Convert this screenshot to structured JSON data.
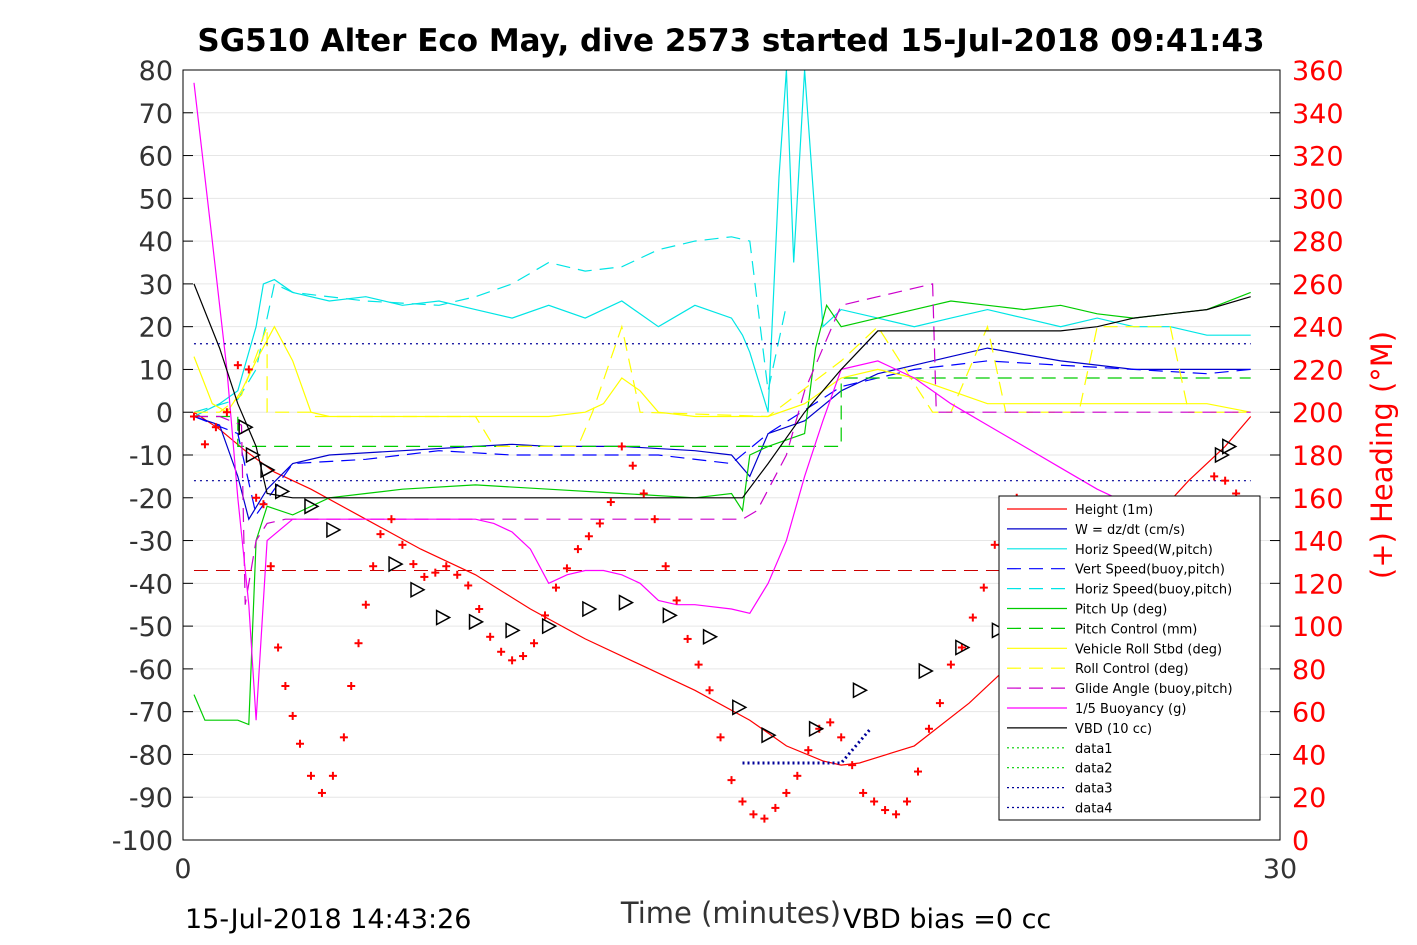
{
  "chart_data": {
    "type": "line",
    "title": "SG510 Alter Eco May, dive 2573 started 15-Jul-2018 09:41:43",
    "xlabel": "Time (minutes)",
    "ylabel_right": "(+) Heading (°M)",
    "xlim": [
      0,
      30
    ],
    "ylim": [
      -100,
      80
    ],
    "ylim_right": [
      0,
      360
    ],
    "x_ticks": [
      "0",
      "30"
    ],
    "y_ticks": [
      "80",
      "70",
      "60",
      "50",
      "40",
      "30",
      "20",
      "10",
      "0",
      "-10",
      "-20",
      "-30",
      "-40",
      "-50",
      "-60",
      "-70",
      "-80",
      "-90",
      "-100"
    ],
    "y_ticks_right": [
      "360",
      "340",
      "320",
      "300",
      "280",
      "260",
      "240",
      "220",
      "200",
      "180",
      "160",
      "140",
      "120",
      "100",
      "80",
      "60",
      "40",
      "20",
      "0"
    ],
    "grid": true,
    "legend_position": "lower-right",
    "footer_left": "15-Jul-2018 14:43:26",
    "footer_right": "VBD bias =0 cc",
    "colors": {
      "height": "#ff0000",
      "w": "#0000cc",
      "horiz_speed": "#00e5e5",
      "vert_speed": "#0000ff",
      "pitch": "#00cc00",
      "roll": "#ffff00",
      "glide": "#cc00cc",
      "buoyancy": "#ff00ff",
      "vbd": "#000000",
      "data4": "#000099",
      "dark_red": "#cc0000",
      "heading_axis": "#ff0000"
    },
    "legend": [
      {
        "label": "Height (1m)",
        "color": "#ff0000",
        "dash": ""
      },
      {
        "label": "W = dz/dt (cm/s)",
        "color": "#0000cc",
        "dash": ""
      },
      {
        "label": "Horiz Speed(W,pitch)",
        "color": "#00e5e5",
        "dash": ""
      },
      {
        "label": "Vert Speed(buoy,pitch)",
        "color": "#0000ff",
        "dash": "14 8"
      },
      {
        "label": "Horiz Speed(buoy,pitch)",
        "color": "#00e5e5",
        "dash": "14 8"
      },
      {
        "label": "Pitch Up (deg)",
        "color": "#00cc00",
        "dash": ""
      },
      {
        "label": "Pitch Control (mm)",
        "color": "#00cc00",
        "dash": "14 8"
      },
      {
        "label": "Vehicle Roll Stbd (deg)",
        "color": "#ffff00",
        "dash": ""
      },
      {
        "label": "Roll Control (deg)",
        "color": "#ffff00",
        "dash": "14 8"
      },
      {
        "label": "Glide Angle (buoy,pitch)",
        "color": "#cc00cc",
        "dash": "14 8"
      },
      {
        "label": "1/5 Buoyancy (g)",
        "color": "#ff00ff",
        "dash": ""
      },
      {
        "label": "VBD (10 cc)",
        "color": "#000000",
        "dash": ""
      },
      {
        "label": "data1",
        "color": "#00cc00",
        "dash": "2 3"
      },
      {
        "label": "data2",
        "color": "#00cc00",
        "dash": "2 3"
      },
      {
        "label": "data3",
        "color": "#000099",
        "dash": "2 3"
      },
      {
        "label": "data4",
        "color": "#000099",
        "dash": "2 3"
      }
    ],
    "series": [
      {
        "name": "Height (1m)",
        "x": [
          0.3,
          1.0,
          1.7,
          2.5,
          3.5,
          5,
          6.5,
          8,
          9.5,
          11,
          12.5,
          14,
          15.5,
          16.5,
          17.5,
          18,
          18.5,
          20,
          21.5,
          23,
          24.5,
          26,
          27.5,
          28.5,
          29.2
        ],
        "y": [
          0,
          -4,
          -9,
          -14,
          -18,
          -25,
          -32,
          -38,
          -46,
          -53,
          -59,
          -65,
          -72,
          -78,
          -81.5,
          -82.5,
          -82,
          -78,
          -68,
          -56,
          -44,
          -30,
          -16,
          -8,
          -1
        ]
      },
      {
        "name": "W = dz/dt (cm/s)",
        "x": [
          0.3,
          1.0,
          1.5,
          1.8,
          2.3,
          3,
          4,
          6,
          8,
          9,
          10,
          12,
          14,
          15,
          15.5,
          16,
          17,
          18,
          19,
          20,
          21,
          22,
          24,
          26,
          28,
          29.2
        ],
        "y": [
          -1,
          -3,
          -15,
          -25,
          -18,
          -12,
          -10,
          -9,
          -8,
          -7.5,
          -8,
          -8,
          -9,
          -10,
          -15,
          -5,
          -2,
          5,
          9,
          11,
          13,
          15,
          12,
          10,
          10,
          10
        ]
      },
      {
        "name": "Horiz Speed(W,pitch)",
        "x": [
          0.3,
          1.0,
          1.5,
          2.0,
          2.2,
          2.5,
          3,
          4,
          5,
          6,
          7,
          8,
          9,
          10,
          11,
          12,
          13,
          14,
          15,
          15.3,
          15.5,
          16,
          16.3,
          16.5,
          16.7,
          17,
          17.5,
          18,
          19,
          20,
          21,
          22,
          23,
          24,
          25,
          26,
          27,
          28,
          29.2
        ],
        "y": [
          -1,
          2,
          5,
          20,
          30,
          31,
          28,
          26,
          27,
          25,
          26,
          24,
          22,
          25,
          22,
          26,
          20,
          25,
          22,
          18,
          14,
          0,
          55,
          80,
          35,
          80,
          20,
          24,
          22,
          20,
          22,
          24,
          22,
          20,
          22,
          20,
          20,
          18,
          18
        ]
      },
      {
        "name": "Vert Speed(buoy,pitch)",
        "x": [
          0.3,
          1.5,
          2.0,
          3,
          5,
          7,
          9,
          11,
          13,
          15,
          16,
          18,
          20,
          22,
          24,
          26,
          28,
          29.2
        ],
        "y": [
          -1,
          -5,
          -24,
          -12,
          -11,
          -9,
          -10,
          -10,
          -10,
          -12,
          -5,
          6,
          10,
          12,
          11,
          10,
          9,
          10
        ]
      },
      {
        "name": "Horiz Speed(buoy,pitch)",
        "x": [
          0.3,
          1.5,
          2.0,
          2.5,
          3,
          5,
          7,
          8,
          9,
          10,
          11,
          12,
          13,
          14,
          15,
          15.5,
          16,
          16.5
        ],
        "y": [
          0,
          3,
          10,
          30,
          28,
          26,
          25,
          27,
          30,
          35,
          33,
          34,
          38,
          40,
          41,
          40,
          5,
          25
        ]
      },
      {
        "name": "Pitch Up (deg)",
        "x": [
          0.3,
          0.6,
          1.0,
          1.5,
          1.8,
          2.0,
          2.3,
          3,
          4,
          5,
          6,
          8,
          10,
          12,
          14,
          15,
          15.3,
          15.5,
          16,
          17,
          17.3,
          17.6,
          18,
          19,
          20,
          21,
          22,
          23,
          24,
          25,
          26,
          27,
          28,
          29.2
        ],
        "y": [
          -66,
          -72,
          -72,
          -72,
          -73,
          -30,
          -22,
          -24,
          -20,
          -19,
          -18,
          -17,
          -18,
          -19,
          -20,
          -19,
          -23,
          -10,
          -8,
          -5,
          15,
          25,
          20,
          22,
          24,
          26,
          25,
          24,
          25,
          23,
          22,
          23,
          24,
          28
        ]
      },
      {
        "name": "Pitch Control (mm)",
        "x": [
          0.3,
          1.5,
          1.5,
          15.3,
          15.3,
          18,
          18,
          29.2
        ],
        "y": [
          -1,
          -1,
          -8,
          -8,
          -8,
          -8,
          8,
          8
        ]
      },
      {
        "name": "Vehicle Roll Stbd (deg)",
        "x": [
          0.3,
          0.8,
          1.2,
          1.6,
          2.0,
          2.5,
          3,
          3.5,
          4,
          5,
          6,
          7,
          8,
          9,
          10,
          11,
          11.5,
          12,
          12.5,
          13,
          14,
          15,
          15.5,
          16,
          17,
          18,
          19,
          20,
          21,
          22,
          23,
          24,
          25,
          26,
          27,
          28,
          29.2
        ],
        "y": [
          13,
          2,
          0,
          5,
          12,
          20,
          12,
          0,
          -1,
          -1,
          -1,
          -1,
          -1,
          -1,
          -1,
          0,
          2,
          8,
          5,
          0,
          -1,
          -1,
          -1,
          -1,
          2,
          8,
          10,
          8,
          5,
          2,
          2,
          2,
          2,
          2,
          2,
          2,
          0
        ]
      },
      {
        "name": "Roll Control (deg)",
        "x": [
          0.3,
          1.0,
          1.6,
          2.3,
          2.3,
          3.5,
          3.5,
          8,
          8.5,
          10.8,
          11.2,
          12,
          12.5,
          16,
          18,
          19,
          20.5,
          21,
          22,
          22.5,
          24.5,
          25,
          27,
          27.5,
          29.2
        ],
        "y": [
          0,
          0,
          4,
          20,
          0,
          0,
          -1,
          -1,
          -8,
          -8,
          0,
          20,
          0,
          -1,
          12,
          20,
          0,
          0,
          20,
          0,
          0,
          20,
          20,
          0,
          0
        ]
      },
      {
        "name": "Glide Angle (buoy,pitch)",
        "x": [
          0.3,
          1.0,
          1.6,
          1.7,
          2.0,
          2.3,
          2.8,
          15.3,
          15.7,
          16.5,
          17,
          17.5,
          18,
          19,
          20,
          20.5,
          20.6,
          21,
          29.2
        ],
        "y": [
          -1,
          -1,
          -3,
          -45,
          -30,
          -26,
          -25,
          -25,
          -23,
          -10,
          5,
          15,
          25,
          27,
          29,
          30,
          0,
          0,
          0
        ]
      },
      {
        "name": "1/5 Buoyancy (g)",
        "x": [
          0.3,
          0.8,
          1.2,
          1.5,
          1.8,
          2.0,
          2.3,
          3,
          5,
          7,
          8,
          8.5,
          9,
          9.5,
          10,
          10.5,
          11,
          11.5,
          12,
          12.5,
          13,
          13.5,
          14,
          15,
          15.5,
          16,
          16.5,
          17,
          17.5,
          18,
          19,
          20,
          21,
          22,
          23,
          24,
          25,
          26,
          27,
          28,
          29.2
        ],
        "y": [
          77,
          40,
          10,
          -20,
          -45,
          -72,
          -30,
          -25,
          -25,
          -25,
          -25,
          -26,
          -28,
          -32,
          -40,
          -38,
          -37,
          -37,
          -38,
          -40,
          -44,
          -45,
          -45,
          -46,
          -47,
          -40,
          -30,
          -15,
          -2,
          10,
          12,
          8,
          2,
          -3,
          -8,
          -13,
          -18,
          -22,
          -25,
          -28,
          -30
        ]
      },
      {
        "name": "VBD (10 cc)",
        "x": [
          0.3,
          1.0,
          1.5,
          2.0,
          2.3,
          3,
          8,
          10,
          12,
          14,
          15,
          15.3,
          16,
          17,
          18,
          19,
          20,
          24,
          25,
          26,
          27,
          28,
          29.2
        ],
        "y": [
          30,
          15,
          2,
          -8,
          -19,
          -20,
          -20,
          -20,
          -20,
          -20,
          -20,
          -20,
          -12,
          0,
          10,
          19,
          19,
          19,
          20,
          22,
          23,
          24,
          27
        ]
      },
      {
        "name": "data3",
        "x": [
          15.3,
          18,
          18.8
        ],
        "y": [
          -82,
          -82,
          -74
        ]
      },
      {
        "name": "data4",
        "x": [
          0.3,
          29.2,
          0.3,
          29.2
        ],
        "y": [
          16,
          16,
          -16,
          -16
        ]
      }
    ],
    "markers_right": [
      {
        "x": 1.7,
        "y": 193
      },
      {
        "x": 1.9,
        "y": 180
      },
      {
        "x": 2.3,
        "y": 173
      },
      {
        "x": 2.7,
        "y": 163
      },
      {
        "x": 3.5,
        "y": 156
      },
      {
        "x": 4.1,
        "y": 145
      },
      {
        "x": 5.8,
        "y": 129
      },
      {
        "x": 6.4,
        "y": 117
      },
      {
        "x": 7.1,
        "y": 104
      },
      {
        "x": 8.0,
        "y": 102
      },
      {
        "x": 9.0,
        "y": 98
      },
      {
        "x": 10.0,
        "y": 100
      },
      {
        "x": 11.1,
        "y": 108
      },
      {
        "x": 12.1,
        "y": 111
      },
      {
        "x": 13.3,
        "y": 105
      },
      {
        "x": 14.4,
        "y": 95
      },
      {
        "x": 15.2,
        "y": 62
      },
      {
        "x": 16.0,
        "y": 49
      },
      {
        "x": 17.3,
        "y": 52
      },
      {
        "x": 18.5,
        "y": 70
      },
      {
        "x": 20.3,
        "y": 79
      },
      {
        "x": 21.3,
        "y": 90
      },
      {
        "x": 22.3,
        "y": 98
      },
      {
        "x": 23.5,
        "y": 100
      },
      {
        "x": 24.5,
        "y": 93
      },
      {
        "x": 25.5,
        "y": 90
      },
      {
        "x": 26.5,
        "y": 88
      },
      {
        "x": 28.4,
        "y": 180
      },
      {
        "x": 28.6,
        "y": 184
      }
    ],
    "heading": {
      "x": [
        0.3,
        0.6,
        0.9,
        1.2,
        1.5,
        1.8,
        2.0,
        2.2,
        2.4,
        2.6,
        2.8,
        3.0,
        3.2,
        3.5,
        3.8,
        4.1,
        4.4,
        4.6,
        4.8,
        5.0,
        5.2,
        5.4,
        5.7,
        6.0,
        6.3,
        6.6,
        6.9,
        7.2,
        7.5,
        7.8,
        8.1,
        8.4,
        8.7,
        9.0,
        9.3,
        9.6,
        9.9,
        10.2,
        10.5,
        10.8,
        11.1,
        11.4,
        11.7,
        12.0,
        12.3,
        12.6,
        12.9,
        13.2,
        13.5,
        13.8,
        14.1,
        14.4,
        14.7,
        15.0,
        15.3,
        15.6,
        15.9,
        16.2,
        16.5,
        16.8,
        17.1,
        17.4,
        17.7,
        18.0,
        18.3,
        18.6,
        18.9,
        19.2,
        19.5,
        19.8,
        20.1,
        20.4,
        20.7,
        21.0,
        21.3,
        21.6,
        21.9,
        22.2,
        22.5,
        22.8,
        23.1,
        23.4,
        23.7,
        24.0,
        24.3,
        24.6,
        24.9,
        25.2,
        25.5,
        25.8,
        26.1,
        26.4,
        26.7,
        27.0,
        27.3,
        27.6,
        27.9,
        28.2,
        28.5,
        28.8
      ],
      "y": [
        198,
        185,
        193,
        200,
        222,
        220,
        160,
        157,
        128,
        90,
        72,
        58,
        45,
        30,
        22,
        30,
        48,
        72,
        92,
        110,
        128,
        143,
        150,
        138,
        129,
        123,
        125,
        128,
        124,
        119,
        108,
        95,
        88,
        84,
        86,
        92,
        105,
        118,
        127,
        136,
        142,
        148,
        158,
        184,
        175,
        162,
        150,
        128,
        112,
        94,
        82,
        70,
        48,
        28,
        18,
        12,
        10,
        15,
        22,
        30,
        42,
        52,
        55,
        48,
        35,
        22,
        18,
        14,
        12,
        18,
        32,
        52,
        64,
        82,
        90,
        104,
        118,
        138,
        154,
        160,
        150,
        130,
        95,
        60,
        45,
        38,
        46,
        58,
        65,
        62,
        60,
        75,
        95,
        110,
        125,
        140,
        155,
        170,
        168,
        162
      ]
    }
  }
}
